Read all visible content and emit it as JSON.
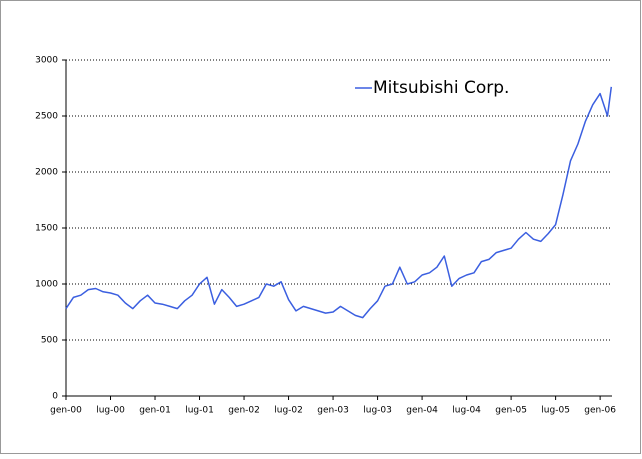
{
  "chart_data": {
    "type": "line",
    "x": [
      0,
      1,
      2,
      3,
      4,
      5,
      6,
      7,
      8,
      9,
      10,
      11,
      12,
      13,
      14,
      15,
      16,
      17,
      18,
      19,
      20,
      21,
      22,
      23,
      24,
      25,
      26,
      27,
      28,
      29,
      30,
      31,
      32,
      33,
      34,
      35,
      36,
      37,
      38,
      39,
      40,
      41,
      42,
      43,
      44,
      45,
      46,
      47,
      48,
      49,
      50,
      51,
      52,
      53,
      54,
      55,
      56,
      57,
      58,
      59,
      60,
      61,
      62,
      63,
      64,
      65,
      66,
      67,
      68,
      69,
      70,
      71,
      72,
      73,
      73.5
    ],
    "series": [
      {
        "name": "Mitsubishi Corp.",
        "color": "#3b5fe0",
        "values": [
          780,
          880,
          900,
          950,
          960,
          930,
          920,
          900,
          830,
          780,
          850,
          900,
          830,
          820,
          800,
          780,
          850,
          900,
          1000,
          1060,
          820,
          950,
          880,
          800,
          820,
          850,
          880,
          1000,
          980,
          1020,
          860,
          760,
          800,
          780,
          760,
          740,
          750,
          800,
          760,
          720,
          700,
          780,
          850,
          980,
          1000,
          1150,
          1000,
          1020,
          1080,
          1100,
          1150,
          1250,
          980,
          1050,
          1080,
          1100,
          1200,
          1220,
          1280,
          1300,
          1320,
          1400,
          1460,
          1400,
          1380,
          1450,
          1530,
          1800,
          2100,
          2250,
          2450,
          2600,
          2700,
          2500,
          2760
        ]
      }
    ],
    "xlim": [
      0,
      73.6
    ],
    "xticks": [
      {
        "value": 0,
        "label": "gen-00"
      },
      {
        "value": 6,
        "label": "lug-00"
      },
      {
        "value": 12,
        "label": "gen-01"
      },
      {
        "value": 18,
        "label": "lug-01"
      },
      {
        "value": 24,
        "label": "gen-02"
      },
      {
        "value": 30,
        "label": "lug-02"
      },
      {
        "value": 36,
        "label": "gen-03"
      },
      {
        "value": 42,
        "label": "lug-03"
      },
      {
        "value": 48,
        "label": "gen-04"
      },
      {
        "value": 54,
        "label": "lug-04"
      },
      {
        "value": 60,
        "label": "gen-05"
      },
      {
        "value": 66,
        "label": "lug-05"
      },
      {
        "value": 72,
        "label": "gen-06"
      }
    ],
    "ylim": [
      0,
      3000
    ],
    "yticks": [
      0,
      500,
      1000,
      1500,
      2000,
      2500,
      3000
    ],
    "grid": true,
    "legend": "top-right"
  }
}
